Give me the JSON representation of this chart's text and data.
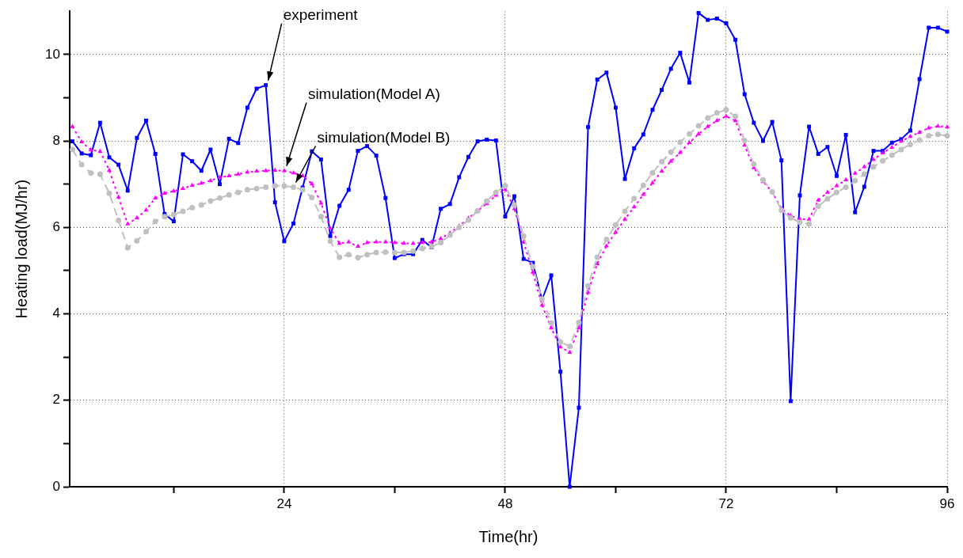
{
  "chart_data": {
    "type": "line",
    "xlabel": "Time(hr)",
    "ylabel": "Heating load(MJ/hr)",
    "x": [
      1,
      2,
      3,
      4,
      5,
      6,
      7,
      8,
      9,
      10,
      11,
      12,
      13,
      14,
      15,
      16,
      17,
      18,
      19,
      20,
      21,
      22,
      23,
      24,
      25,
      26,
      27,
      28,
      29,
      30,
      31,
      32,
      33,
      34,
      35,
      36,
      37,
      38,
      39,
      40,
      41,
      42,
      43,
      44,
      45,
      46,
      47,
      48,
      49,
      50,
      51,
      52,
      53,
      54,
      55,
      56,
      57,
      58,
      59,
      60,
      61,
      62,
      63,
      64,
      65,
      66,
      67,
      68,
      69,
      70,
      71,
      72,
      73,
      74,
      75,
      76,
      77,
      78,
      79,
      80,
      81,
      82,
      83,
      84,
      85,
      86,
      87,
      88,
      89,
      90,
      91,
      92,
      93,
      94,
      95,
      96
    ],
    "series": [
      {
        "color": "#0000ff",
        "marker": "square",
        "line_style": "solid",
        "values": [
          7.99,
          7.71,
          7.67,
          8.42,
          7.62,
          7.45,
          6.85,
          8.07,
          8.47,
          7.7,
          6.31,
          6.14,
          7.69,
          7.53,
          7.31,
          7.8,
          7.0,
          8.05,
          7.95,
          8.77,
          9.21,
          9.29,
          6.58,
          5.68,
          6.09,
          6.92,
          7.76,
          7.57,
          5.8,
          6.5,
          6.87,
          7.77,
          7.88,
          7.66,
          6.68,
          5.29,
          5.38,
          5.38,
          5.71,
          5.54,
          6.43,
          6.54,
          7.16,
          7.63,
          7.99,
          8.03,
          8.01,
          6.25,
          6.72,
          5.27,
          5.18,
          4.33,
          4.89,
          2.66,
          0.0,
          1.83,
          8.32,
          9.42,
          9.58,
          8.77,
          7.12,
          7.83,
          8.15,
          8.72,
          9.18,
          9.67,
          10.04,
          9.35,
          10.96,
          10.8,
          10.83,
          10.72,
          10.34,
          9.08,
          8.42,
          8.0,
          8.44,
          7.55,
          1.98,
          6.74,
          8.33,
          7.7,
          7.86,
          7.19,
          8.14,
          6.35,
          6.94,
          7.77,
          7.77,
          7.96,
          8.04,
          8.24,
          9.43,
          10.62,
          10.62,
          10.53
        ]
      },
      {
        "color": "#ff00ff",
        "marker": "triangle",
        "line_style": "dotted",
        "values": [
          8.33,
          7.98,
          7.79,
          7.76,
          7.32,
          6.7,
          6.08,
          6.22,
          6.4,
          6.68,
          6.79,
          6.84,
          6.9,
          6.97,
          7.02,
          7.08,
          7.16,
          7.19,
          7.23,
          7.28,
          7.3,
          7.31,
          7.32,
          7.31,
          7.26,
          7.19,
          7.01,
          6.56,
          5.98,
          5.63,
          5.66,
          5.56,
          5.65,
          5.66,
          5.66,
          5.65,
          5.63,
          5.63,
          5.65,
          5.66,
          5.74,
          5.87,
          6.03,
          6.21,
          6.38,
          6.55,
          6.74,
          6.88,
          6.43,
          5.66,
          4.96,
          4.2,
          3.67,
          3.23,
          3.11,
          3.67,
          4.5,
          5.16,
          5.57,
          5.89,
          6.19,
          6.47,
          6.76,
          7.03,
          7.3,
          7.53,
          7.73,
          7.96,
          8.16,
          8.33,
          8.47,
          8.57,
          8.47,
          7.9,
          7.38,
          7.06,
          6.82,
          6.43,
          6.27,
          6.19,
          6.19,
          6.63,
          6.81,
          6.96,
          7.1,
          7.25,
          7.4,
          7.57,
          7.72,
          7.85,
          7.99,
          8.1,
          8.2,
          8.3,
          8.34,
          8.32
        ]
      },
      {
        "color": "#c0c0c0",
        "marker": "circle",
        "line_style": "dashed",
        "values": [
          7.8,
          7.45,
          7.26,
          7.23,
          6.79,
          6.16,
          5.53,
          5.69,
          5.9,
          6.14,
          6.25,
          6.3,
          6.37,
          6.46,
          6.52,
          6.61,
          6.68,
          6.75,
          6.81,
          6.87,
          6.9,
          6.93,
          6.96,
          6.96,
          6.93,
          6.87,
          6.69,
          6.25,
          5.68,
          5.31,
          5.37,
          5.3,
          5.37,
          5.42,
          5.43,
          5.42,
          5.42,
          5.45,
          5.51,
          5.56,
          5.65,
          5.82,
          6.0,
          6.17,
          6.38,
          6.61,
          6.81,
          6.96,
          6.52,
          5.8,
          5.09,
          4.35,
          3.79,
          3.35,
          3.25,
          3.8,
          4.65,
          5.31,
          5.72,
          6.06,
          6.37,
          6.67,
          6.97,
          7.26,
          7.52,
          7.74,
          7.97,
          8.16,
          8.35,
          8.53,
          8.65,
          8.72,
          8.57,
          8.01,
          7.46,
          7.1,
          6.82,
          6.4,
          6.22,
          6.12,
          6.08,
          6.49,
          6.66,
          6.81,
          6.93,
          7.08,
          7.23,
          7.4,
          7.54,
          7.67,
          7.8,
          7.92,
          8.02,
          8.12,
          8.15,
          8.12
        ]
      }
    ],
    "xlim": [
      0.7,
      96
    ],
    "xticks": [
      {
        "value": 12,
        "label": null
      },
      24,
      {
        "value": 36,
        "label": null
      },
      48,
      {
        "value": 60,
        "label": null
      },
      72,
      {
        "value": 84,
        "label": null
      },
      96
    ],
    "ylim": [
      0,
      11
    ],
    "yticks": [
      0,
      {
        "value": 1,
        "label": null
      },
      2,
      {
        "value": 3,
        "label": null
      },
      4,
      {
        "value": 5,
        "label": null
      },
      6,
      {
        "value": 7,
        "label": null
      },
      8,
      {
        "value": 9,
        "label": null
      },
      10
    ],
    "grid": true,
    "annotations": [
      {
        "text": "experiment",
        "x": 22,
        "y": 9.29
      },
      {
        "text": "simulation(Model A)",
        "x": 24,
        "y": 7.31
      },
      {
        "text": "simulation(Model B)",
        "x": 25,
        "y": 6.93
      }
    ]
  }
}
